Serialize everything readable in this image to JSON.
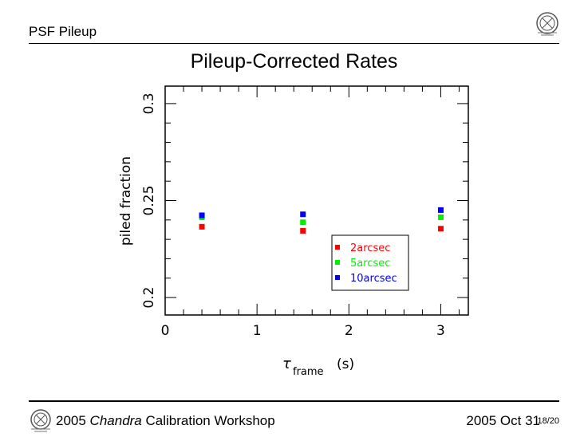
{
  "header": {
    "section": "PSF Pileup"
  },
  "footer": {
    "workshop_prefix": "2005 ",
    "workshop_italic": "Chandra",
    "workshop_suffix": " Calibration Workshop",
    "date": "2005 Oct 31",
    "page": "18/20"
  },
  "colors": {
    "2arcsec": "#ff0000",
    "5arcsec": "#00ee00",
    "10arcsec": "#0000ff"
  },
  "chart_data": {
    "type": "scatter",
    "title": "Pileup-Corrected Rates",
    "xlabel_symbol": "τ",
    "xlabel_sub": "frame",
    "xlabel_unit": "(s)",
    "ylabel": "piled fraction",
    "xlim": [
      0,
      3.3
    ],
    "ylim": [
      0.191,
      0.309
    ],
    "xticks": [
      "0",
      "1",
      "2",
      "3"
    ],
    "yticks": [
      "0.2",
      "0.25",
      "0.3"
    ],
    "legend_position": "lower-right",
    "series": [
      {
        "name": "2arcsec",
        "x": [
          0.4,
          1.5,
          3.0
        ],
        "y": [
          0.2365,
          0.2344,
          0.2355
        ]
      },
      {
        "name": "5arcsec",
        "x": [
          0.4,
          1.5,
          3.0
        ],
        "y": [
          0.2414,
          0.2388,
          0.2414
        ]
      },
      {
        "name": "10arcsec",
        "x": [
          0.4,
          1.5,
          3.0
        ],
        "y": [
          0.2424,
          0.2429,
          0.2451
        ]
      }
    ]
  }
}
